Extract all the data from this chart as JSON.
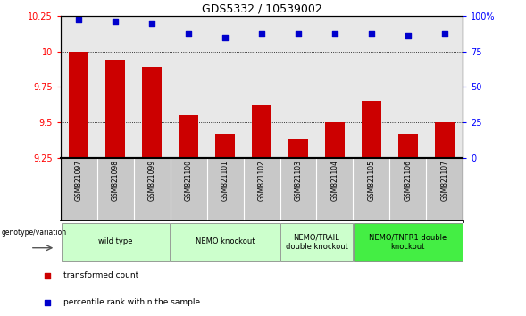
{
  "title": "GDS5332 / 10539002",
  "samples": [
    "GSM821097",
    "GSM821098",
    "GSM821099",
    "GSM821100",
    "GSM821101",
    "GSM821102",
    "GSM821103",
    "GSM821104",
    "GSM821105",
    "GSM821106",
    "GSM821107"
  ],
  "bar_values": [
    10.0,
    9.94,
    9.89,
    9.55,
    9.42,
    9.62,
    9.38,
    9.5,
    9.65,
    9.42,
    9.5
  ],
  "percentile_values": [
    97,
    96,
    95,
    87,
    85,
    87,
    87,
    87,
    87,
    86,
    87
  ],
  "ylim_left": [
    9.25,
    10.25
  ],
  "ylim_right": [
    0,
    100
  ],
  "yticks_left": [
    9.25,
    9.5,
    9.75,
    10.0,
    10.25
  ],
  "yticks_right": [
    0,
    25,
    50,
    75,
    100
  ],
  "ytick_labels_left": [
    "9.25",
    "9.5",
    "9.75",
    "10",
    "10.25"
  ],
  "ytick_labels_right": [
    "0",
    "25",
    "50",
    "75",
    "100%"
  ],
  "bar_color": "#cc0000",
  "dot_color": "#0000cc",
  "background_color": "#ffffff",
  "plot_bg_color": "#e8e8e8",
  "sample_bg_color": "#c8c8c8",
  "groups": [
    {
      "label": "wild type",
      "start": 0,
      "end": 2,
      "color": "#ccffcc"
    },
    {
      "label": "NEMO knockout",
      "start": 3,
      "end": 5,
      "color": "#ccffcc"
    },
    {
      "label": "NEMO/TRAIL\ndouble knockout",
      "start": 6,
      "end": 7,
      "color": "#ccffcc"
    },
    {
      "label": "NEMO/TNFR1 double\nknockout",
      "start": 8,
      "end": 10,
      "color": "#44ee44"
    }
  ],
  "genotype_label": "genotype/variation",
  "legend_items": [
    {
      "label": "transformed count",
      "color": "#cc0000"
    },
    {
      "label": "percentile rank within the sample",
      "color": "#0000cc"
    }
  ]
}
